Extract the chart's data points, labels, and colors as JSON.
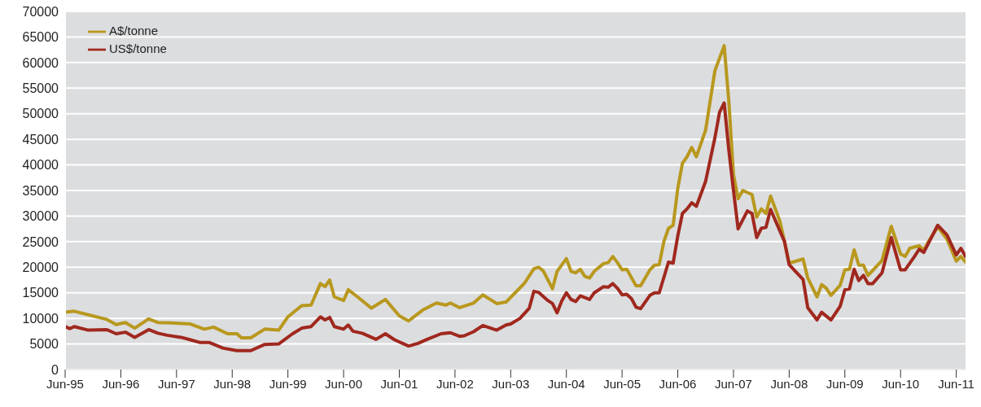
{
  "chart_data": {
    "type": "line",
    "xlim": [
      "1995-06",
      "2011-08"
    ],
    "xticks": [
      {
        "value": "1995-06",
        "label": "Jun-95"
      },
      {
        "value": "1996-06",
        "label": "Jun-96"
      },
      {
        "value": "1997-06",
        "label": "Jun-97"
      },
      {
        "value": "1998-06",
        "label": "Jun-98"
      },
      {
        "value": "1999-06",
        "label": "Jun-99"
      },
      {
        "value": "2000-06",
        "label": "Jun-00"
      },
      {
        "value": "2001-06",
        "label": "Jun-01"
      },
      {
        "value": "2002-06",
        "label": "Jun-02"
      },
      {
        "value": "2003-06",
        "label": "Jun-03"
      },
      {
        "value": "2004-06",
        "label": "Jun-04"
      },
      {
        "value": "2005-06",
        "label": "Jun-05"
      },
      {
        "value": "2006-06",
        "label": "Jun-06"
      },
      {
        "value": "2007-06",
        "label": "Jun-07"
      },
      {
        "value": "2008-06",
        "label": "Jun-08"
      },
      {
        "value": "2009-06",
        "label": "Jun-09"
      },
      {
        "value": "2010-06",
        "label": "Jun-10"
      },
      {
        "value": "2011-06",
        "label": "Jun-11"
      }
    ],
    "ylim": [
      0,
      70000
    ],
    "yticks": [
      0,
      5000,
      10000,
      15000,
      20000,
      25000,
      30000,
      35000,
      40000,
      45000,
      50000,
      55000,
      60000,
      65000,
      70000
    ],
    "grid": "y",
    "legend": "top left",
    "marker": "none",
    "line_style": "solid",
    "series": [
      {
        "name": "A$/tonne",
        "color": "#b8981e",
        "x": [
          "1995-06",
          "1995-08",
          "1995-11",
          "1996-03",
          "1996-05",
          "1996-07",
          "1996-09",
          "1996-12",
          "1997-02",
          "1997-05",
          "1997-09",
          "1997-12",
          "1998-02",
          "1998-05",
          "1998-07",
          "1998-08",
          "1998-10",
          "1999-01",
          "1999-04",
          "1999-06",
          "1999-09",
          "1999-11",
          "2000-01",
          "2000-02",
          "2000-03",
          "2000-04",
          "2000-06",
          "2000-07",
          "2000-09",
          "2000-12",
          "2001-03",
          "2001-06",
          "2001-08",
          "2001-11",
          "2002-02",
          "2002-04",
          "2002-05",
          "2002-07",
          "2002-10",
          "2002-12",
          "2003-03",
          "2003-05",
          "2003-09",
          "2003-11",
          "2003-12",
          "2004-01",
          "2004-03",
          "2004-04",
          "2004-06",
          "2004-07",
          "2004-08",
          "2004-09",
          "2004-10",
          "2004-11",
          "2004-12",
          "2005-02",
          "2005-03",
          "2005-04",
          "2005-05",
          "2005-06",
          "2005-07",
          "2005-09",
          "2005-10",
          "2005-12",
          "2006-01",
          "2006-02",
          "2006-03",
          "2006-04",
          "2006-05",
          "2006-06",
          "2006-07",
          "2006-08",
          "2006-09",
          "2006-10",
          "2006-12",
          "2007-02",
          "2007-04",
          "2007-05",
          "2007-06",
          "2007-07",
          "2007-08",
          "2007-10",
          "2007-11",
          "2007-12",
          "2008-01",
          "2008-02",
          "2008-04",
          "2008-05",
          "2008-06",
          "2008-09",
          "2008-10",
          "2008-12",
          "2009-01",
          "2009-02",
          "2009-03",
          "2009-05",
          "2009-06",
          "2009-07",
          "2009-08",
          "2009-09",
          "2009-10",
          "2009-11",
          "2010-02",
          "2010-04",
          "2010-06",
          "2010-07",
          "2010-08",
          "2010-10",
          "2010-11",
          "2010-12",
          "2011-02",
          "2011-04",
          "2011-06",
          "2011-07",
          "2011-08"
        ],
        "values": [
          11200,
          11400,
          10700,
          9800,
          8800,
          9200,
          8100,
          9900,
          9200,
          9100,
          8900,
          7900,
          8300,
          7000,
          7000,
          6200,
          6200,
          7900,
          7700,
          10300,
          12500,
          12600,
          16800,
          16200,
          17500,
          14200,
          13500,
          15600,
          14200,
          12000,
          13700,
          10500,
          9500,
          11600,
          13000,
          12600,
          13000,
          12100,
          13000,
          14600,
          12900,
          13200,
          16900,
          19700,
          20000,
          19300,
          15800,
          19200,
          21700,
          19200,
          18900,
          19600,
          18200,
          17900,
          19200,
          20700,
          20900,
          22100,
          20900,
          19500,
          19600,
          16400,
          16400,
          19500,
          20400,
          20500,
          25000,
          27600,
          28200,
          35400,
          40300,
          41600,
          43400,
          41600,
          46800,
          58400,
          63300,
          52400,
          38100,
          33400,
          35000,
          34200,
          29800,
          31400,
          30500,
          33900,
          29000,
          25000,
          20800,
          21600,
          17900,
          14200,
          16600,
          15900,
          14500,
          16500,
          19500,
          19600,
          23400,
          20400,
          20400,
          18400,
          21300,
          28000,
          22600,
          22100,
          23700,
          24200,
          23300,
          25000,
          27900,
          25500,
          21200,
          22100,
          21000
        ]
      },
      {
        "name": "US$/tonne",
        "color": "#a0281e",
        "x": [
          "1995-06",
          "1995-07",
          "1995-08",
          "1995-11",
          "1996-03",
          "1996-05",
          "1996-07",
          "1996-09",
          "1996-12",
          "1997-02",
          "1997-04",
          "1997-07",
          "1997-09",
          "1997-11",
          "1998-01",
          "1998-04",
          "1998-07",
          "1998-10",
          "1999-01",
          "1999-04",
          "1999-07",
          "1999-09",
          "1999-11",
          "2000-01",
          "2000-02",
          "2000-03",
          "2000-04",
          "2000-06",
          "2000-07",
          "2000-08",
          "2000-10",
          "2001-01",
          "2001-03",
          "2001-05",
          "2001-08",
          "2001-10",
          "2001-12",
          "2002-03",
          "2002-05",
          "2002-07",
          "2002-08",
          "2002-10",
          "2002-12",
          "2003-03",
          "2003-05",
          "2003-06",
          "2003-08",
          "2003-10",
          "2003-11",
          "2003-12",
          "2004-02",
          "2004-03",
          "2004-04",
          "2004-05",
          "2004-06",
          "2004-07",
          "2004-08",
          "2004-09",
          "2004-11",
          "2004-12",
          "2005-02",
          "2005-03",
          "2005-04",
          "2005-05",
          "2005-06",
          "2005-07",
          "2005-08",
          "2005-09",
          "2005-10",
          "2005-12",
          "2006-01",
          "2006-02",
          "2006-04",
          "2006-05",
          "2006-06",
          "2006-07",
          "2006-08",
          "2006-09",
          "2006-10",
          "2006-12",
          "2007-02",
          "2007-03",
          "2007-04",
          "2007-05",
          "2007-06",
          "2007-07",
          "2007-09",
          "2007-10",
          "2007-11",
          "2007-12",
          "2008-01",
          "2008-02",
          "2008-05",
          "2008-06",
          "2008-09",
          "2008-10",
          "2008-12",
          "2009-01",
          "2009-03",
          "2009-05",
          "2009-06",
          "2009-07",
          "2009-08",
          "2009-09",
          "2009-10",
          "2009-11",
          "2009-12",
          "2010-02",
          "2010-04",
          "2010-06",
          "2010-07",
          "2010-09",
          "2010-10",
          "2010-11",
          "2011-02",
          "2011-04",
          "2011-06",
          "2011-07",
          "2011-08"
        ],
        "values": [
          8400,
          8000,
          8400,
          7700,
          7800,
          7000,
          7300,
          6300,
          7800,
          7100,
          6700,
          6300,
          5800,
          5300,
          5300,
          4200,
          3700,
          3700,
          4900,
          5000,
          7000,
          8100,
          8400,
          10300,
          9700,
          10200,
          8400,
          7900,
          8700,
          7500,
          7100,
          5900,
          7000,
          5800,
          4600,
          5100,
          5900,
          7000,
          7200,
          6500,
          6600,
          7400,
          8600,
          7700,
          8700,
          8900,
          10000,
          12000,
          15300,
          15100,
          13500,
          12900,
          11100,
          13400,
          15000,
          13700,
          13300,
          14400,
          13700,
          15000,
          16200,
          16100,
          16800,
          15900,
          14600,
          14700,
          13900,
          12200,
          11900,
          14500,
          15000,
          15000,
          21000,
          20800,
          26100,
          30500,
          31400,
          32600,
          31900,
          36800,
          45300,
          50300,
          52100,
          42900,
          35000,
          27500,
          31000,
          30500,
          25800,
          27600,
          27800,
          31300,
          25000,
          20500,
          17600,
          12100,
          9700,
          11200,
          9700,
          12400,
          15600,
          15800,
          19600,
          17400,
          18400,
          16800,
          16800,
          18900,
          25800,
          19500,
          19500,
          22100,
          23500,
          22900,
          28200,
          26300,
          22400,
          23700,
          22100
        ]
      }
    ]
  }
}
